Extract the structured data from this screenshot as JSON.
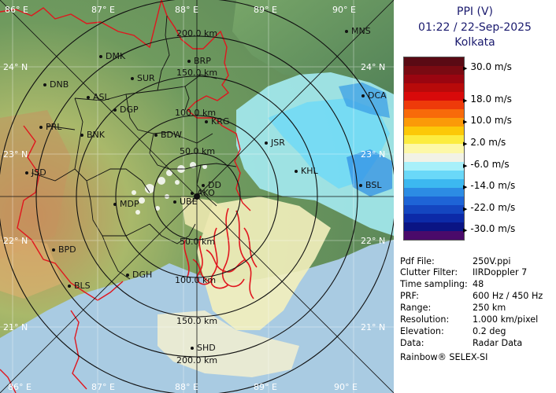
{
  "map": {
    "lat_labels": [
      "24° N",
      "23° N",
      "22° N",
      "21° N"
    ],
    "lon_labels": [
      "86° E",
      "87° E",
      "88° E",
      "89° E",
      "90° E"
    ],
    "range_labels": [
      "50.0 km",
      "100.0 km",
      "150.0 km",
      "200.0 km"
    ],
    "cities": [
      "MNS",
      "DMK",
      "BRP",
      "DNB",
      "SUR",
      "ASL",
      "DGP",
      "DCA",
      "PRL",
      "BNK",
      "KRG",
      "BDW",
      "JSR",
      "JSD",
      "KHL",
      "DD",
      "AKO",
      "BSL",
      "MDP",
      "UBE",
      "BPD",
      "DGH",
      "BLS",
      "SHD"
    ]
  },
  "panel": {
    "title": "PPI (V)",
    "datetime": "01:22 / 22-Sep-2025",
    "station": "Kolkata",
    "scale_labels": [
      "30.0 m/s",
      "18.0 m/s",
      "10.0 m/s",
      "2.0 m/s",
      "-6.0 m/s",
      "-14.0 m/s",
      "-22.0 m/s",
      "-30.0 m/s"
    ],
    "scale_colors": [
      "#5a0a14",
      "#7a0a12",
      "#9a0510",
      "#b80a0a",
      "#d80a0a",
      "#ee3a0a",
      "#f86a0a",
      "#fb9a08",
      "#fcc808",
      "#fcec40",
      "#fdf8a8",
      "#f2f2e6",
      "#a8f0fa",
      "#6ad8f8",
      "#3cb8f0",
      "#2c8ce4",
      "#1e64d6",
      "#1446c0",
      "#0c2aa8",
      "#0a1484",
      "#4a0a6a"
    ],
    "info": [
      {
        "k": "Pdf File:",
        "v": "250V.ppi"
      },
      {
        "k": "Clutter Filter:",
        "v": "IIRDoppler 7"
      },
      {
        "k": "Time sampling:",
        "v": "48"
      },
      {
        "k": "PRF:",
        "v": "600 Hz / 450 Hz"
      },
      {
        "k": "Range:",
        "v": "250 km"
      },
      {
        "k": "Resolution:",
        "v": "1.000 km/pixel"
      },
      {
        "k": "Elevation:",
        "v": "0.2 deg"
      },
      {
        "k": "Data:",
        "v": "Radar Data"
      }
    ],
    "brand": "Rainbow® SELEX-SI"
  }
}
